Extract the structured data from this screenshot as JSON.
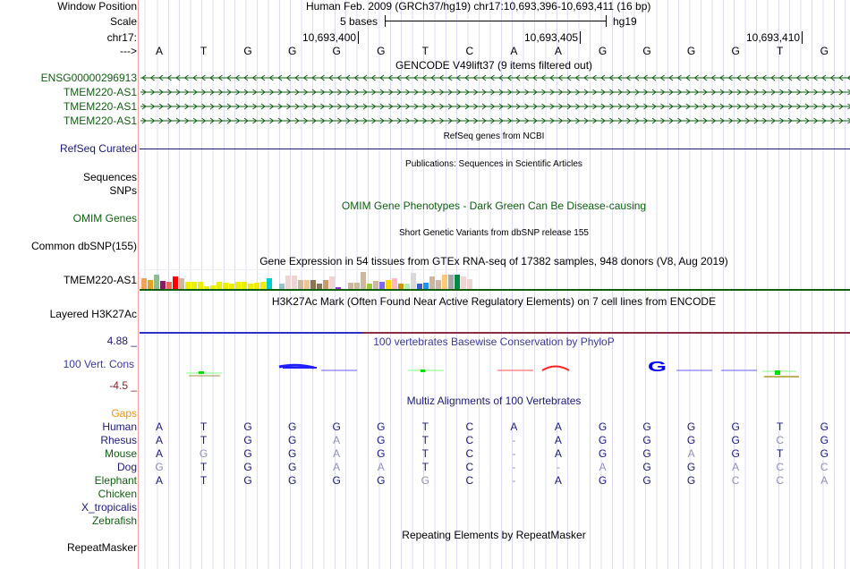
{
  "labels": {
    "window_position": "Window Position",
    "scale": "Scale",
    "chrom": "chr17:",
    "strand": "--->",
    "refseq": "RefSeq Curated",
    "sequences": "Sequences",
    "snps": "SNPs",
    "omim": "OMIM Genes",
    "dbsnp": "Common dbSNP(155)",
    "gtex": "TMEM220-AS1",
    "h3k27ac": "Layered H3K27Ac",
    "cons_max": "4.88 _",
    "cons": "100 Vert. Cons",
    "cons_min": "-4.5 _",
    "gaps": "Gaps",
    "repeatmasker": "RepeatMasker"
  },
  "header": {
    "position": "Human Feb. 2009 (GRCh37/hg19)   chr17:10,693,396-10,693,411 (16 bp)",
    "scale_label": "5 bases",
    "assembly": "hg19",
    "ticks": [
      "10,693,400",
      "10,693,405",
      "10,693,410"
    ]
  },
  "bases": [
    "A",
    "T",
    "G",
    "G",
    "G",
    "G",
    "T",
    "C",
    "A",
    "A",
    "G",
    "G",
    "G",
    "G",
    "T",
    "G"
  ],
  "genes": [
    {
      "name": "ENSG00000296913",
      "strand": "-"
    },
    {
      "name": "TMEM220-AS1",
      "strand": "+"
    },
    {
      "name": "TMEM220-AS1",
      "strand": "+"
    },
    {
      "name": "TMEM220-AS1",
      "strand": "+"
    }
  ],
  "tracks": {
    "gencode": "GENCODE V49lift37 (9 items filtered out)",
    "refseq": "RefSeq genes from NCBI",
    "publications": "Publications: Sequences in Scientific Articles",
    "omim": "OMIM Gene Phenotypes - Dark Green Can Be Disease-causing",
    "dbsnp": "Short Genetic Variants from dbSNP release 155",
    "gtex": "Gene Expression in 54 tissues from GTEx RNA-seq of 17382 samples, 948 donors (V8, Aug 2019)",
    "h3k27ac": "H3K27Ac Mark (Often Found Near Active Regulatory Elements) on 7 cell lines from ENCODE",
    "phylop": "100 vertebrates Basewise Conservation by PhyloP",
    "multiz": "Multiz Alignments of 100 Vertebrates",
    "rmsk": "Repeating Elements by RepeatMasker"
  },
  "gtex_values": [
    0.65,
    0.55,
    0.87,
    0.49,
    0.45,
    0.73,
    0.67,
    0.45,
    0.45,
    0.45,
    0.18,
    0.25,
    0.45,
    0.4,
    0.35,
    0.45,
    0.45,
    0.33,
    0.4,
    0.45,
    0.67,
    0.07,
    0.33,
    0.82,
    0.82,
    0.56,
    0.56,
    0.56,
    0.36,
    0.56,
    0.73,
    0.13,
    0.05,
    0.38,
    0.38,
    1.0,
    0.36,
    0.51,
    0.45,
    0.56,
    0.64,
    0.33,
    0.35,
    0.95,
    0.36,
    0.4,
    0.76,
    0.53,
    0.87,
    0.84,
    0.84,
    0.76,
    0.58,
    0.05
  ],
  "gtex_colors": [
    "#f4a05a",
    "#e8a020",
    "#8fbc8f",
    "#8b1c62",
    "#ee6a50",
    "#ff0000",
    "#cdb79e",
    "#eeee00",
    "#eeee00",
    "#eeee00",
    "#eeee00",
    "#eeee00",
    "#eeee00",
    "#eeee00",
    "#eeee00",
    "#eeee00",
    "#eeee00",
    "#eeee00",
    "#eeee00",
    "#eeee00",
    "#00cdcd",
    "#da70d6",
    "#9ac0cd",
    "#eed5d2",
    "#eed5d2",
    "#cdb79e",
    "#eec591",
    "#8b7355",
    "#8b7355",
    "#cd9b69",
    "#eed5d2",
    "#9932cc",
    "#7a378b",
    "#cdb79e",
    "#cdb79e",
    "#cdb79e",
    "#9acd32",
    "#cdb79e",
    "#7b68ee",
    "#ffd700",
    "#ffb6c1",
    "#cd950c",
    "#b4eeb4",
    "#d9d9d9",
    "#3a5fcd",
    "#1e90ff",
    "#cdb79e",
    "#cdb79e",
    "#ffc878",
    "#a6a6a6",
    "#008b45",
    "#eed5d2",
    "#eed5d2",
    "#cd00cd"
  ],
  "species": [
    {
      "name": "Human",
      "color": "#1a1a7a",
      "seq": [
        "A",
        "T",
        "G",
        "G",
        "G",
        "G",
        "T",
        "C",
        "A",
        "A",
        "G",
        "G",
        "G",
        "G",
        "T",
        "G"
      ]
    },
    {
      "name": "Rhesus",
      "color": "#1a1a7a",
      "seq": [
        "A",
        "T",
        "G",
        "G",
        "A",
        "G",
        "T",
        "C",
        "-",
        "A",
        "G",
        "G",
        "G",
        "G",
        "C",
        "G"
      ]
    },
    {
      "name": "Mouse",
      "color": "#106010",
      "seq": [
        "A",
        "G",
        "G",
        "G",
        "A",
        "G",
        "T",
        "C",
        "-",
        "A",
        "G",
        "G",
        "A",
        "G",
        "T",
        "G"
      ]
    },
    {
      "name": "Dog",
      "color": "#1a1a7a",
      "seq": [
        "G",
        "T",
        "G",
        "G",
        "A",
        "A",
        "T",
        "C",
        "-",
        "-",
        "A",
        "G",
        "G",
        "A",
        "C",
        "C"
      ]
    },
    {
      "name": "Elephant",
      "color": "#106010",
      "seq": [
        "A",
        "T",
        "G",
        "G",
        "G",
        "G",
        "G",
        "C",
        "-",
        "A",
        "G",
        "G",
        "G",
        "C",
        "C",
        "A"
      ]
    },
    {
      "name": "Chicken",
      "color": "#106010",
      "seq": []
    },
    {
      "name": "X_tropicalis",
      "color": "#1a1a7a",
      "seq": []
    },
    {
      "name": "Zebrafish",
      "color": "#106010",
      "seq": []
    }
  ]
}
